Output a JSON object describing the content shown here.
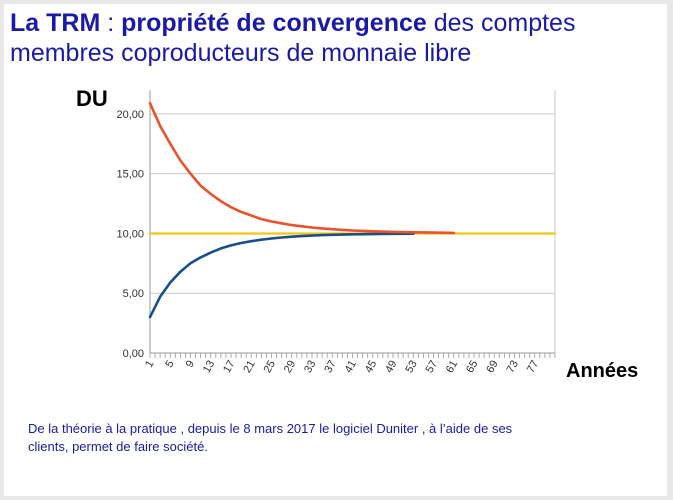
{
  "title": {
    "bold_part1": "La TRM",
    "sep": " : ",
    "bold_part2": "propriété de convergence",
    "rest": " des comptes membres coproducteurs de monnaie libre"
  },
  "caption": "De la théorie à la pratique , depuis le 8 mars 2017 le logiciel Duniter , à l’aide de ses clients, permet de faire société.",
  "colors": {
    "upper": "#e8532a",
    "lower": "#1a4f86",
    "target": "#f5c518",
    "grid": "#c8c8c8",
    "title": "#1a1aa6"
  },
  "chart_data": {
    "type": "line",
    "ylabel": "DU",
    "xlabel": "Années",
    "ylim": [
      0,
      22
    ],
    "yticks": [
      "0,00",
      "5,00",
      "10,00",
      "15,00",
      "20,00"
    ],
    "ytick_values": [
      0,
      5,
      10,
      15,
      20
    ],
    "xlim": [
      1,
      81
    ],
    "xticks": [
      "1",
      "5",
      "9",
      "13",
      "17",
      "21",
      "25",
      "29",
      "33",
      "37",
      "41",
      "45",
      "49",
      "53",
      "57",
      "61",
      "65",
      "69",
      "73",
      "77"
    ],
    "grid": true,
    "series": [
      {
        "key": "upper",
        "values": [
          [
            1,
            20.9
          ],
          [
            3,
            19.0
          ],
          [
            5,
            17.5
          ],
          [
            7,
            16.1
          ],
          [
            9,
            15.0
          ],
          [
            11,
            14.0
          ],
          [
            13,
            13.3
          ],
          [
            15,
            12.7
          ],
          [
            17,
            12.2
          ],
          [
            19,
            11.8
          ],
          [
            21,
            11.5
          ],
          [
            23,
            11.2
          ],
          [
            25,
            11.0
          ],
          [
            27,
            10.85
          ],
          [
            29,
            10.7
          ],
          [
            31,
            10.6
          ],
          [
            33,
            10.5
          ],
          [
            35,
            10.42
          ],
          [
            37,
            10.36
          ],
          [
            39,
            10.3
          ],
          [
            41,
            10.25
          ],
          [
            45,
            10.18
          ],
          [
            49,
            10.13
          ],
          [
            53,
            10.1
          ],
          [
            57,
            10.07
          ],
          [
            61,
            10.05
          ]
        ]
      },
      {
        "key": "lower",
        "values": [
          [
            1,
            3.0
          ],
          [
            3,
            4.7
          ],
          [
            5,
            5.9
          ],
          [
            7,
            6.8
          ],
          [
            9,
            7.5
          ],
          [
            11,
            8.0
          ],
          [
            13,
            8.4
          ],
          [
            15,
            8.75
          ],
          [
            17,
            9.0
          ],
          [
            19,
            9.2
          ],
          [
            21,
            9.35
          ],
          [
            23,
            9.48
          ],
          [
            25,
            9.58
          ],
          [
            27,
            9.66
          ],
          [
            29,
            9.73
          ],
          [
            31,
            9.78
          ],
          [
            33,
            9.82
          ],
          [
            35,
            9.86
          ],
          [
            37,
            9.89
          ],
          [
            41,
            9.93
          ],
          [
            45,
            9.95
          ],
          [
            49,
            9.97
          ],
          [
            53,
            9.98
          ]
        ]
      },
      {
        "key": "target",
        "values": [
          [
            1,
            10.0
          ],
          [
            81,
            10.0
          ]
        ]
      }
    ]
  }
}
